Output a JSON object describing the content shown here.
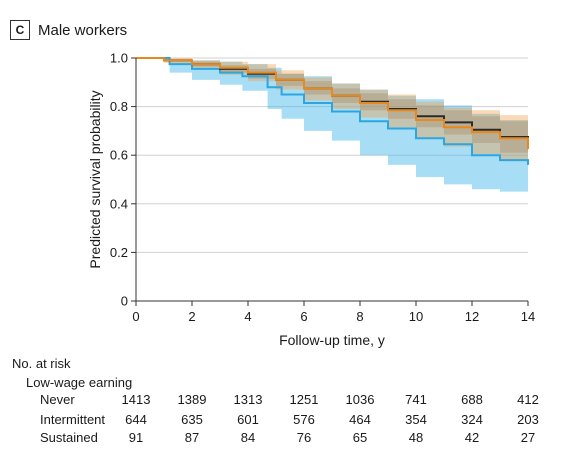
{
  "panel": {
    "letter": "C",
    "title": "Male workers"
  },
  "chart_data": {
    "type": "line",
    "xlabel": "Follow-up time, y",
    "ylabel": "Predicted survival probability",
    "xlim": [
      0,
      14
    ],
    "ylim": [
      0,
      1.0
    ],
    "x_ticks": [
      0,
      2,
      4,
      6,
      8,
      10,
      12,
      14
    ],
    "y_ticks": [
      0,
      0.2,
      0.4,
      0.6,
      0.8,
      1.0
    ],
    "y_tick_labels": [
      "0",
      "0.2",
      "0.4",
      "0.6",
      "0.8",
      "1.0"
    ],
    "grid": "horizontal",
    "colors": {
      "never": "#2b2b2b",
      "intermittent": "#e8891e",
      "sustained": "#2ba6e0"
    },
    "series": [
      {
        "key": "never",
        "x": [
          0,
          1,
          2,
          3,
          4,
          5,
          6,
          7,
          8,
          9,
          10,
          11,
          12,
          13,
          14
        ],
        "values": [
          1.0,
          0.99,
          0.975,
          0.955,
          0.935,
          0.91,
          0.875,
          0.845,
          0.82,
          0.79,
          0.76,
          0.735,
          0.705,
          0.675,
          0.64
        ],
        "ci_lower": [
          1.0,
          0.985,
          0.965,
          0.94,
          0.915,
          0.885,
          0.85,
          0.815,
          0.785,
          0.75,
          0.715,
          0.685,
          0.65,
          0.61,
          0.575
        ],
        "ci_upper": [
          1.0,
          0.995,
          0.985,
          0.97,
          0.955,
          0.935,
          0.905,
          0.875,
          0.855,
          0.83,
          0.805,
          0.785,
          0.76,
          0.74,
          0.72
        ]
      },
      {
        "key": "intermittent",
        "x": [
          0,
          1,
          2,
          3,
          4,
          5,
          6,
          7,
          8,
          9,
          10,
          11,
          12,
          13,
          14
        ],
        "values": [
          1.0,
          0.99,
          0.975,
          0.96,
          0.94,
          0.91,
          0.875,
          0.845,
          0.815,
          0.785,
          0.745,
          0.715,
          0.695,
          0.67,
          0.625
        ],
        "ci_lower": [
          1.0,
          0.98,
          0.96,
          0.93,
          0.905,
          0.87,
          0.825,
          0.79,
          0.755,
          0.715,
          0.67,
          0.635,
          0.605,
          0.575,
          0.52
        ],
        "ci_upper": [
          1.0,
          1.0,
          0.99,
          0.985,
          0.975,
          0.95,
          0.92,
          0.895,
          0.87,
          0.85,
          0.82,
          0.795,
          0.785,
          0.765,
          0.745
        ]
      },
      {
        "key": "sustained",
        "x": [
          0,
          1.2,
          2,
          3,
          3.8,
          4.7,
          5.2,
          6,
          7,
          8,
          9,
          10,
          11,
          12,
          13,
          14
        ],
        "values": [
          1.0,
          0.975,
          0.955,
          0.94,
          0.925,
          0.88,
          0.85,
          0.815,
          0.78,
          0.74,
          0.71,
          0.67,
          0.645,
          0.6,
          0.58,
          0.56
        ],
        "ci_lower": [
          1.0,
          0.94,
          0.91,
          0.89,
          0.865,
          0.79,
          0.75,
          0.7,
          0.66,
          0.6,
          0.56,
          0.51,
          0.48,
          0.46,
          0.45,
          0.42
        ],
        "ci_upper": [
          1.0,
          0.995,
          0.99,
          0.985,
          0.975,
          0.96,
          0.935,
          0.925,
          0.895,
          0.87,
          0.845,
          0.83,
          0.805,
          0.77,
          0.745,
          0.735
        ]
      }
    ]
  },
  "risk_table": {
    "heading": "No. at risk",
    "subheading": "Low-wage earning",
    "rows": [
      {
        "label": "Never",
        "values": [
          "1413",
          "1389",
          "1313",
          "1251",
          "1036",
          "741",
          "688",
          "412"
        ]
      },
      {
        "label": "Intermittent",
        "values": [
          "644",
          "635",
          "601",
          "576",
          "464",
          "354",
          "324",
          "203"
        ]
      },
      {
        "label": "Sustained",
        "values": [
          "91",
          "87",
          "84",
          "76",
          "65",
          "48",
          "42",
          "27"
        ]
      }
    ]
  }
}
